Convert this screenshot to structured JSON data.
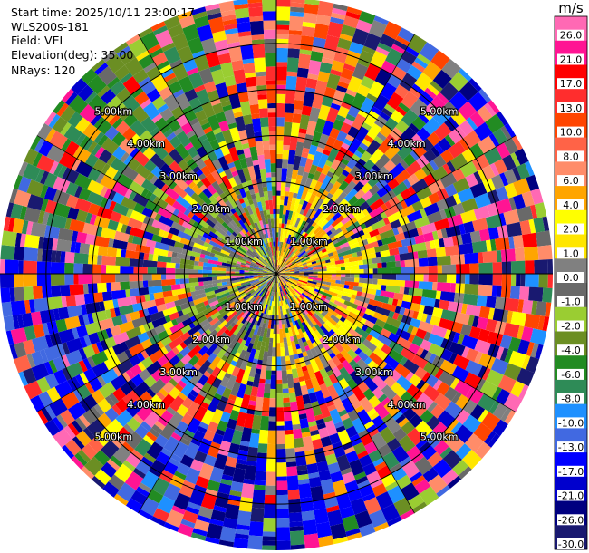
{
  "header": {
    "start_time": "Start time: 2025/10/11 23:00:17",
    "instrument": "WLS200s-181",
    "field": "Field: VEL",
    "elevation": "Elevation(deg): 35.00",
    "nrays": "NRays: 120"
  },
  "chart_data": {
    "type": "heatmap",
    "projection": "polar-ppi",
    "field": "VEL",
    "units": "m/s",
    "elevation_deg": 35.0,
    "n_rays": 120,
    "range_km": [
      0,
      6.0
    ],
    "range_rings": [
      {
        "km": 1,
        "label": "1.00km"
      },
      {
        "km": 2,
        "label": "2.00km"
      },
      {
        "km": 3,
        "label": "3.00km"
      },
      {
        "km": 4,
        "label": "4.00km"
      },
      {
        "km": 5,
        "label": "5.00km"
      }
    ],
    "colorbar": {
      "label": "m/s",
      "ticks": [
        "26.0",
        "21.0",
        "17.0",
        "13.0",
        "10.0",
        "8.0",
        "6.0",
        "4.0",
        "2.0",
        "1.0",
        "0.0",
        "-1.0",
        "-2.0",
        "-4.0",
        "-6.0",
        "-8.0",
        "-10.0",
        "-13.0",
        "-17.0",
        "-21.0",
        "-26.0",
        "-30.0"
      ],
      "colors": [
        "#ff69b4",
        "#ff1493",
        "#ff0000",
        "#ff2d2d",
        "#ff4500",
        "#ff6347",
        "#ff8c69",
        "#ffa500",
        "#ffff00",
        "#ffe600",
        "#808080",
        "#696969",
        "#9acd32",
        "#6b8e23",
        "#228b22",
        "#2e8b57",
        "#1e90ff",
        "#4169e1",
        "#0000ff",
        "#0000cd",
        "#000080",
        "#191970"
      ]
    },
    "velocity_summary": {
      "near_field": "mixed -2 to +4 m/s (olive west, yellow east)",
      "far_field": "noisy, full range -30 to 26 m/s"
    }
  }
}
